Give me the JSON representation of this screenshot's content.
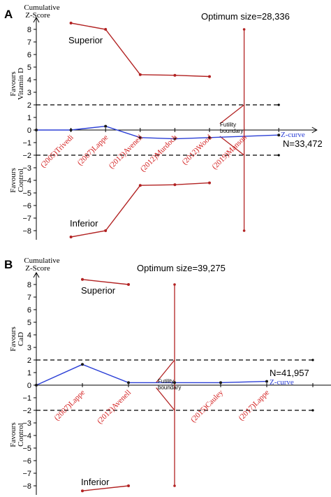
{
  "colors": {
    "boundary": "#b22222",
    "zcurve": "#2b3fd6",
    "study_label": "#d42020",
    "axis": "#000000",
    "dashed": "#000000"
  },
  "chart_data": [
    {
      "type": "line",
      "panel_label": "A",
      "y_title": [
        "Cumulative",
        "Z-Score"
      ],
      "favours_top": [
        "Favours",
        "Vitamin D"
      ],
      "favours_bottom": [
        "Favours",
        "Control"
      ],
      "ylim": [
        -8.5,
        8.5
      ],
      "y_ticks": [
        8,
        7,
        6,
        5,
        4,
        3,
        2,
        1,
        0,
        -1,
        -2,
        -3,
        -4,
        -5,
        -6,
        -7,
        -8
      ],
      "optimum_label": "Optimum size=28,336",
      "superior_label": "Superior",
      "inferior_label": "Inferior",
      "futility_label": [
        "Futility",
        "boundary"
      ],
      "n_label": "N=33,472",
      "zcurve_label": "Z-curve",
      "x_positions": [
        0,
        1,
        2,
        3,
        4,
        5,
        6,
        7
      ],
      "studies": [
        {
          "label": "(2005)Trivedi",
          "x": 1
        },
        {
          "label": "(2007)Lappe",
          "x": 2
        },
        {
          "label": "(2012)Avenell",
          "x": 3
        },
        {
          "label": "(2012)Murdoch",
          "x": 4
        },
        {
          "label": "(2012)Wood",
          "x": 5
        },
        {
          "label": "(2019)Manson",
          "x": 6
        }
      ],
      "series": [
        {
          "name": "Z-curve",
          "x": [
            0,
            1,
            2,
            3,
            4,
            5,
            7
          ],
          "y": [
            0,
            0,
            0.3,
            -0.6,
            -0.7,
            -0.6,
            -0.4
          ]
        },
        {
          "x": [
            1,
            2,
            3,
            4,
            5
          ],
          "y": [
            8.5,
            8.0,
            4.4,
            4.35,
            4.25
          ]
        },
        {
          "x": [
            1,
            2,
            3,
            4,
            5
          ],
          "y": [
            -8.5,
            -8.0,
            -4.4,
            -4.35,
            -4.2
          ]
        }
      ],
      "futility_upper": {
        "x": [
          5.3,
          6
        ],
        "y": [
          0.5,
          2
        ]
      },
      "futility_lower": {
        "x": [
          5.3,
          6
        ],
        "y": [
          -0.5,
          -2
        ]
      },
      "optimum_x": 6,
      "dashed_lines": [
        2,
        -2
      ],
      "axis_x_end": 8.1
    },
    {
      "type": "line",
      "panel_label": "B",
      "y_title": [
        "Cumulative",
        "Z-Score"
      ],
      "favours_top": [
        "Favours",
        "CaD"
      ],
      "favours_bottom": [
        "Favours",
        "Control"
      ],
      "ylim": [
        -8.5,
        8.5
      ],
      "y_ticks": [
        8,
        7,
        6,
        5,
        4,
        3,
        2,
        1,
        0,
        -1,
        -2,
        -3,
        -4,
        -5,
        -6,
        -7,
        -8
      ],
      "optimum_label": "Optimum size=39,275",
      "superior_label": "Superior",
      "inferior_label": "Inferior",
      "futility_label": [
        "Futility",
        "boundary"
      ],
      "n_label": "N=41,957",
      "zcurve_label": "Z-curve",
      "x_positions": [
        0,
        1,
        2,
        3,
        4,
        5,
        6
      ],
      "studies": [
        {
          "label": "(2007)Lappe",
          "x": 1
        },
        {
          "label": "(2012)Avenell",
          "x": 2
        },
        {
          "label": "(2015)Cauley",
          "x": 4
        },
        {
          "label": "(2017)Lappe",
          "x": 5
        }
      ],
      "series": [
        {
          "name": "Z-curve",
          "x": [
            0,
            1,
            2,
            3,
            4,
            5
          ],
          "y": [
            0,
            1.65,
            0.2,
            0.2,
            0.2,
            0.3
          ]
        },
        {
          "x": [
            1,
            2
          ],
          "y": [
            8.4,
            8.0
          ]
        },
        {
          "x": [
            1,
            2
          ],
          "y": [
            -8.4,
            -8.0
          ]
        }
      ],
      "futility_upper": {
        "x": [
          2.6,
          3
        ],
        "y": [
          0.2,
          2
        ]
      },
      "futility_lower": {
        "x": [
          2.6,
          3
        ],
        "y": [
          -0.2,
          -2
        ]
      },
      "optimum_x": 3,
      "dashed_lines": [
        2,
        -2
      ],
      "axis_x_end": 6.6
    }
  ]
}
